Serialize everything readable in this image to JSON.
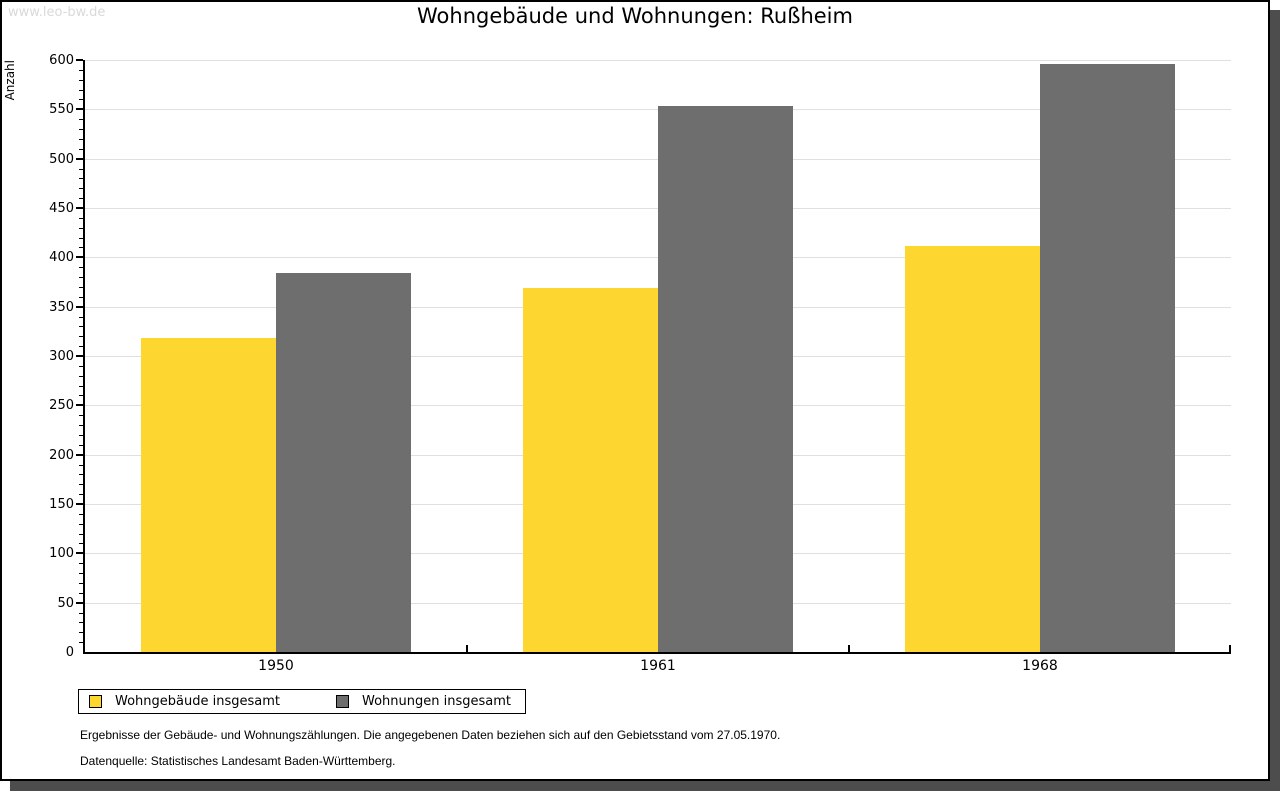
{
  "watermark": "www.leo-bw.de",
  "chart_data": {
    "type": "bar",
    "title": "Wohngebäude und Wohnungen: Rußheim",
    "xlabel": "",
    "ylabel": "Anzahl",
    "categories": [
      "1950",
      "1961",
      "1968"
    ],
    "series": [
      {
        "name": "Wohngebäude insgesamt",
        "color": "#fdd62f",
        "values": [
          318,
          369,
          411
        ]
      },
      {
        "name": "Wohnungen insgesamt",
        "color": "#6e6e6e",
        "values": [
          384,
          553,
          596
        ]
      }
    ],
    "ylim": [
      0,
      600
    ],
    "y_major_step": 50,
    "y_minor_step": 10,
    "grid": true,
    "legend_position": "bottom-left"
  },
  "footnotes": [
    "Ergebnisse der Gebäude- und Wohnungszählungen. Die angegebenen Daten beziehen sich auf den Gebietsstand vom 27.05.1970.",
    "Datenquelle: Statistisches Landesamt Baden-Württemberg."
  ],
  "colors": {
    "grid": "#e0e0e0",
    "axis": "#000000",
    "watermark": "#d9d9d9",
    "shadow": "#4d4d4d"
  }
}
